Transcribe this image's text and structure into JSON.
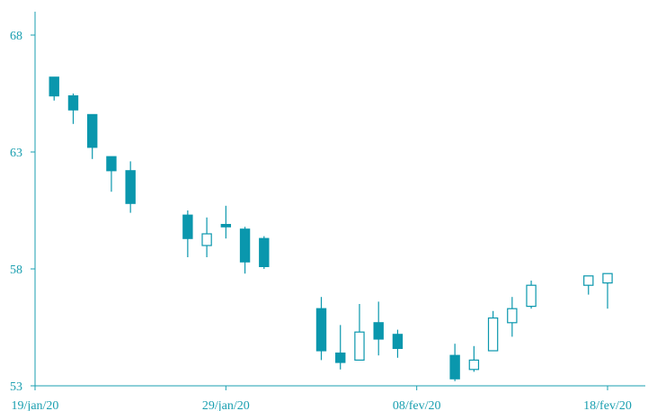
{
  "chart_data": {
    "type": "candlestick",
    "title": "",
    "xlabel": "",
    "ylabel": "",
    "ylim": [
      53,
      68
    ],
    "yticks": [
      53,
      58,
      63,
      68
    ],
    "ytick_labels": [
      "53",
      "58",
      "63",
      "68"
    ],
    "xlim": [
      "2020-01-19",
      "2020-02-20"
    ],
    "xticks": [
      "2020-01-19",
      "2020-01-29",
      "2020-02-08",
      "2020-02-18"
    ],
    "xtick_labels": [
      "19/jan/20",
      "29/jan/20",
      "08/fev/20",
      "18/fev/20"
    ],
    "up_color": "#ffffff",
    "down_color": "#0a97ad",
    "line_color": "#0a97ad",
    "candles": [
      {
        "date": "2020-01-20",
        "open": 66.2,
        "high": 66.2,
        "low": 65.2,
        "close": 65.4
      },
      {
        "date": "2020-01-21",
        "open": 65.4,
        "high": 65.5,
        "low": 64.2,
        "close": 64.8
      },
      {
        "date": "2020-01-22",
        "open": 64.6,
        "high": 64.6,
        "low": 62.7,
        "close": 63.2
      },
      {
        "date": "2020-01-23",
        "open": 62.8,
        "high": 62.8,
        "low": 61.3,
        "close": 62.2
      },
      {
        "date": "2020-01-24",
        "open": 62.2,
        "high": 62.6,
        "low": 60.4,
        "close": 60.8
      },
      {
        "date": "2020-01-27",
        "open": 60.3,
        "high": 60.5,
        "low": 58.5,
        "close": 59.3
      },
      {
        "date": "2020-01-28",
        "open": 59.0,
        "high": 60.2,
        "low": 58.5,
        "close": 59.5
      },
      {
        "date": "2020-01-29",
        "open": 59.9,
        "high": 60.7,
        "low": 59.3,
        "close": 59.8
      },
      {
        "date": "2020-01-30",
        "open": 59.7,
        "high": 59.8,
        "low": 57.8,
        "close": 58.3
      },
      {
        "date": "2020-01-31",
        "open": 59.3,
        "high": 59.4,
        "low": 58.0,
        "close": 58.1
      },
      {
        "date": "2020-02-03",
        "open": 56.3,
        "high": 56.8,
        "low": 54.1,
        "close": 54.5
      },
      {
        "date": "2020-02-04",
        "open": 54.4,
        "high": 55.6,
        "low": 53.7,
        "close": 54.0
      },
      {
        "date": "2020-02-05",
        "open": 54.1,
        "high": 56.5,
        "low": 54.1,
        "close": 55.3
      },
      {
        "date": "2020-02-06",
        "open": 55.7,
        "high": 56.6,
        "low": 54.3,
        "close": 55.0
      },
      {
        "date": "2020-02-07",
        "open": 55.2,
        "high": 55.4,
        "low": 54.2,
        "close": 54.6
      },
      {
        "date": "2020-02-10",
        "open": 54.3,
        "high": 54.8,
        "low": 53.2,
        "close": 53.3
      },
      {
        "date": "2020-02-11",
        "open": 53.7,
        "high": 54.7,
        "low": 53.6,
        "close": 54.1
      },
      {
        "date": "2020-02-12",
        "open": 54.5,
        "high": 56.2,
        "low": 54.5,
        "close": 55.9
      },
      {
        "date": "2020-02-13",
        "open": 55.7,
        "high": 56.8,
        "low": 55.1,
        "close": 56.3
      },
      {
        "date": "2020-02-14",
        "open": 56.4,
        "high": 57.5,
        "low": 56.3,
        "close": 57.3
      },
      {
        "date": "2020-02-17",
        "open": 57.3,
        "high": 57.7,
        "low": 56.9,
        "close": 57.7
      },
      {
        "date": "2020-02-18",
        "open": 57.4,
        "high": 57.8,
        "low": 56.3,
        "close": 57.8
      }
    ]
  }
}
